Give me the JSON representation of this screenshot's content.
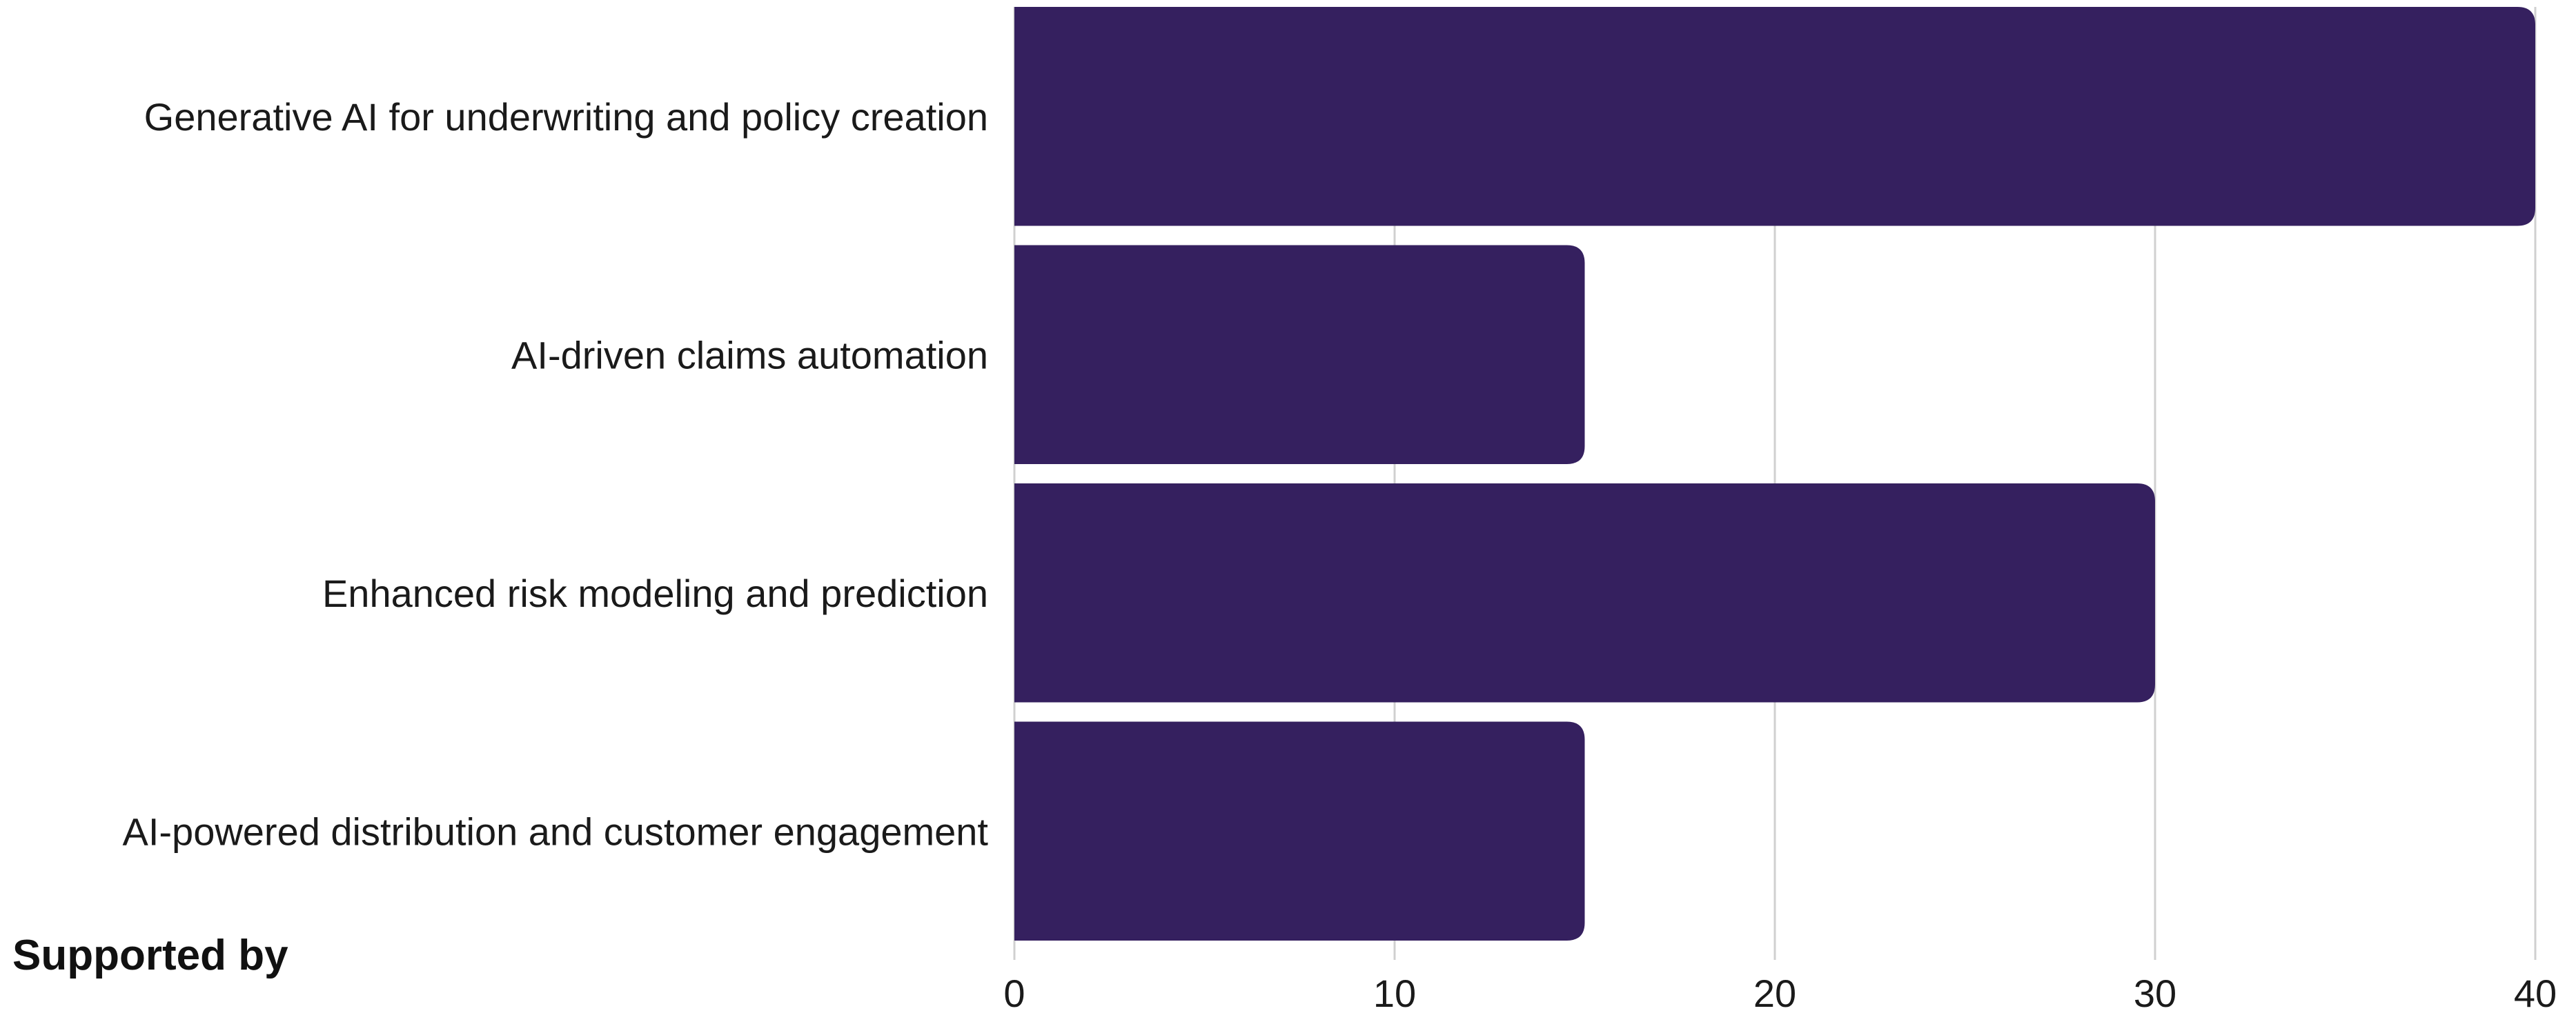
{
  "chart_data": {
    "type": "bar",
    "orientation": "horizontal",
    "categories": [
      "Generative AI for underwriting and policy creation",
      "AI-driven claims automation",
      "Enhanced risk modeling and prediction",
      "AI-powered distribution and customer engagement"
    ],
    "values": [
      40,
      15,
      30,
      15
    ],
    "xlim": [
      0,
      40
    ],
    "xticks": [
      "0",
      "10",
      "20",
      "30",
      "40"
    ],
    "grid": true,
    "bar_color": "#35205f",
    "grid_color": "#d0d0d0"
  },
  "footer": {
    "text": "Supported by"
  }
}
